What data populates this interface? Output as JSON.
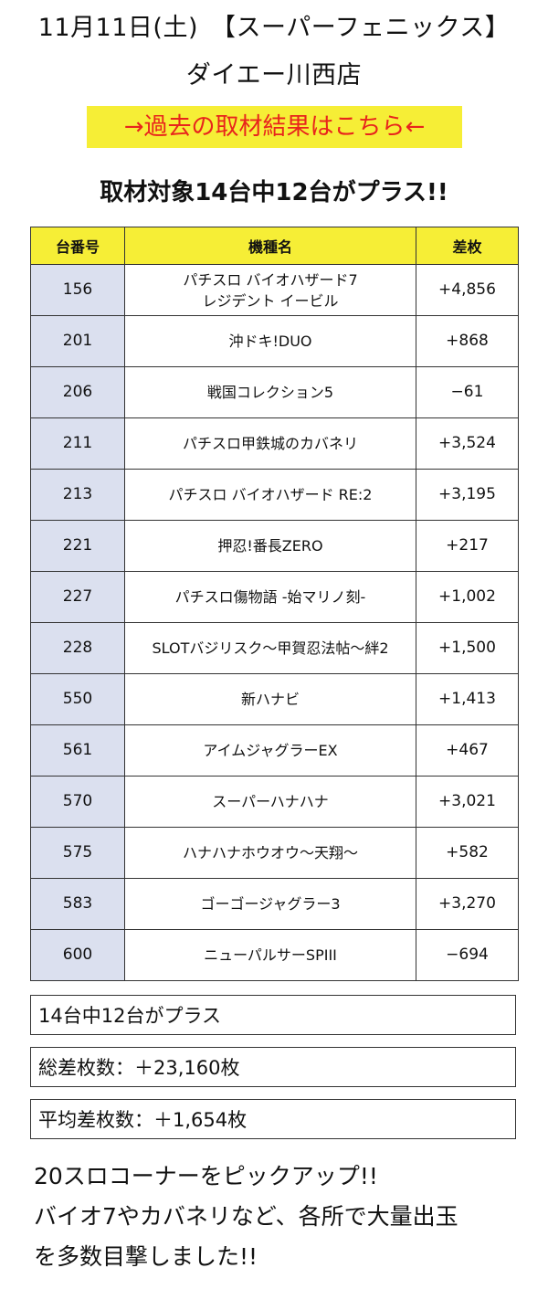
{
  "header": {
    "title_line1": "11月11日(土)　【スーパーフェニックス】",
    "title_line2": "ダイエー川西店"
  },
  "banner": {
    "label": "→過去の取材結果はこちら←",
    "background": "#f6ee36",
    "text_color": "#e8241c"
  },
  "summary_heading": "取材対象14台中12台がプラス!!",
  "table": {
    "header_color": "#f6ee36",
    "number_cell_color": "#dbe0ef",
    "columns": [
      "台番号",
      "機種名",
      "差枚"
    ],
    "rows": [
      {
        "number": "156",
        "name": "パチスロ バイオハザード7\nレジデント イービル",
        "diff": "+4,856"
      },
      {
        "number": "201",
        "name": "沖ドキ!DUO",
        "diff": "+868"
      },
      {
        "number": "206",
        "name": "戦国コレクション5",
        "diff": "−61"
      },
      {
        "number": "211",
        "name": "パチスロ甲鉄城のカバネリ",
        "diff": "+3,524"
      },
      {
        "number": "213",
        "name": "パチスロ バイオハザード RE:2",
        "diff": "+3,195"
      },
      {
        "number": "221",
        "name": "押忍!番長ZERO",
        "diff": "+217"
      },
      {
        "number": "227",
        "name": "パチスロ傷物語 -始マリノ刻-",
        "diff": "+1,002"
      },
      {
        "number": "228",
        "name": "SLOTバジリスク～甲賀忍法帖～絆2",
        "diff": "+1,500"
      },
      {
        "number": "550",
        "name": "新ハナビ",
        "diff": "+1,413"
      },
      {
        "number": "561",
        "name": "アイムジャグラーEX",
        "diff": "+467"
      },
      {
        "number": "570",
        "name": "スーパーハナハナ",
        "diff": "+3,021"
      },
      {
        "number": "575",
        "name": "ハナハナホウオウ～天翔～",
        "diff": "+582"
      },
      {
        "number": "583",
        "name": "ゴーゴージャグラー3",
        "diff": "+3,270"
      },
      {
        "number": "600",
        "name": "ニューパルサーSPIII",
        "diff": "−694"
      }
    ]
  },
  "summary": {
    "plus_count": "14台中12台がプラス",
    "total_diff": "総差枚数：＋23,160枚",
    "average_diff": "平均差枚数：＋1,654枚"
  },
  "comment": {
    "lines": [
      "20スロコーナーをピックアップ!!",
      "バイオ7やカバネリなど、各所で大量出玉",
      "を多数目撃しました!!"
    ]
  }
}
